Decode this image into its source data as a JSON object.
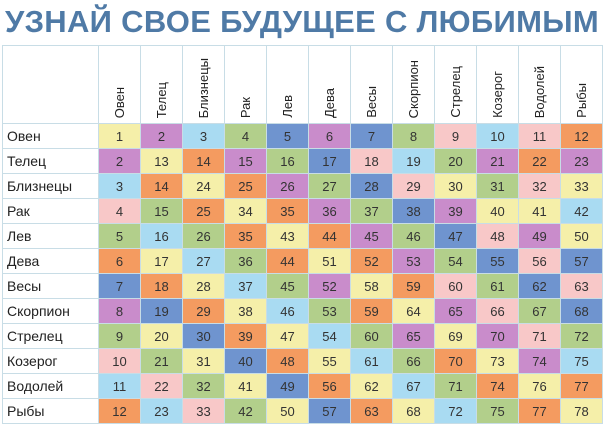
{
  "title": "УЗНАЙ СВОЕ БУДУЩЕЕ С ЛЮБИМЫМ",
  "colors": {
    "Y": "#f5efa9",
    "P": "#c98ccb",
    "L": "#a9dbf2",
    "G": "#b2cf8b",
    "B": "#6f94cf",
    "O": "#f49b60",
    "K": "#f8c8c8"
  },
  "signs": [
    "Овен",
    "Телец",
    "Близнецы",
    "Рак",
    "Лев",
    "Дева",
    "Весы",
    "Скорпион",
    "Стрелец",
    "Козерог",
    "Водолей",
    "Рыбы"
  ],
  "rows": [
    {
      "values": [
        1,
        2,
        3,
        4,
        5,
        6,
        7,
        8,
        9,
        10,
        11,
        12
      ],
      "colors": [
        "Y",
        "P",
        "L",
        "G",
        "B",
        "P",
        "B",
        "G",
        "K",
        "L",
        "K",
        "O"
      ]
    },
    {
      "values": [
        2,
        13,
        14,
        15,
        16,
        17,
        18,
        19,
        20,
        21,
        22,
        23
      ],
      "colors": [
        "P",
        "Y",
        "O",
        "P",
        "G",
        "B",
        "K",
        "L",
        "G",
        "P",
        "O",
        "P"
      ]
    },
    {
      "values": [
        3,
        14,
        24,
        25,
        26,
        27,
        28,
        29,
        30,
        31,
        32,
        33
      ],
      "colors": [
        "L",
        "O",
        "Y",
        "O",
        "P",
        "G",
        "B",
        "K",
        "Y",
        "G",
        "K",
        "Y"
      ]
    },
    {
      "values": [
        4,
        15,
        25,
        34,
        35,
        36,
        37,
        38,
        39,
        40,
        41,
        42
      ],
      "colors": [
        "K",
        "G",
        "O",
        "Y",
        "O",
        "P",
        "G",
        "B",
        "P",
        "Y",
        "Y",
        "L"
      ]
    },
    {
      "values": [
        5,
        16,
        26,
        35,
        43,
        44,
        45,
        46,
        47,
        48,
        49,
        50
      ],
      "colors": [
        "G",
        "L",
        "G",
        "O",
        "Y",
        "O",
        "P",
        "G",
        "B",
        "K",
        "P",
        "Y"
      ]
    },
    {
      "values": [
        6,
        17,
        27,
        36,
        44,
        51,
        52,
        53,
        54,
        55,
        56,
        57
      ],
      "colors": [
        "O",
        "Y",
        "L",
        "G",
        "O",
        "Y",
        "O",
        "P",
        "G",
        "B",
        "K",
        "B"
      ]
    },
    {
      "values": [
        7,
        18,
        28,
        37,
        45,
        52,
        58,
        59,
        60,
        61,
        62,
        63
      ],
      "colors": [
        "B",
        "O",
        "Y",
        "L",
        "G",
        "P",
        "Y",
        "O",
        "K",
        "G",
        "B",
        "K"
      ]
    },
    {
      "values": [
        8,
        19,
        29,
        38,
        46,
        53,
        59,
        64,
        65,
        66,
        67,
        68
      ],
      "colors": [
        "P",
        "B",
        "O",
        "Y",
        "L",
        "G",
        "O",
        "Y",
        "P",
        "K",
        "G",
        "B"
      ]
    },
    {
      "values": [
        9,
        20,
        30,
        39,
        47,
        54,
        60,
        65,
        69,
        70,
        71,
        72
      ],
      "colors": [
        "G",
        "Y",
        "B",
        "O",
        "Y",
        "L",
        "G",
        "P",
        "Y",
        "P",
        "K",
        "G"
      ]
    },
    {
      "values": [
        10,
        21,
        31,
        40,
        48,
        55,
        61,
        66,
        70,
        73,
        74,
        75
      ],
      "colors": [
        "K",
        "G",
        "Y",
        "B",
        "O",
        "Y",
        "L",
        "G",
        "O",
        "Y",
        "P",
        "L"
      ]
    },
    {
      "values": [
        11,
        22,
        32,
        41,
        49,
        56,
        62,
        67,
        71,
        74,
        76,
        77
      ],
      "colors": [
        "L",
        "K",
        "G",
        "Y",
        "B",
        "O",
        "Y",
        "L",
        "G",
        "O",
        "Y",
        "O"
      ]
    },
    {
      "values": [
        12,
        23,
        33,
        42,
        50,
        57,
        63,
        68,
        72,
        75,
        77,
        78
      ],
      "colors": [
        "O",
        "L",
        "K",
        "G",
        "Y",
        "B",
        "O",
        "Y",
        "L",
        "G",
        "O",
        "Y"
      ]
    }
  ]
}
